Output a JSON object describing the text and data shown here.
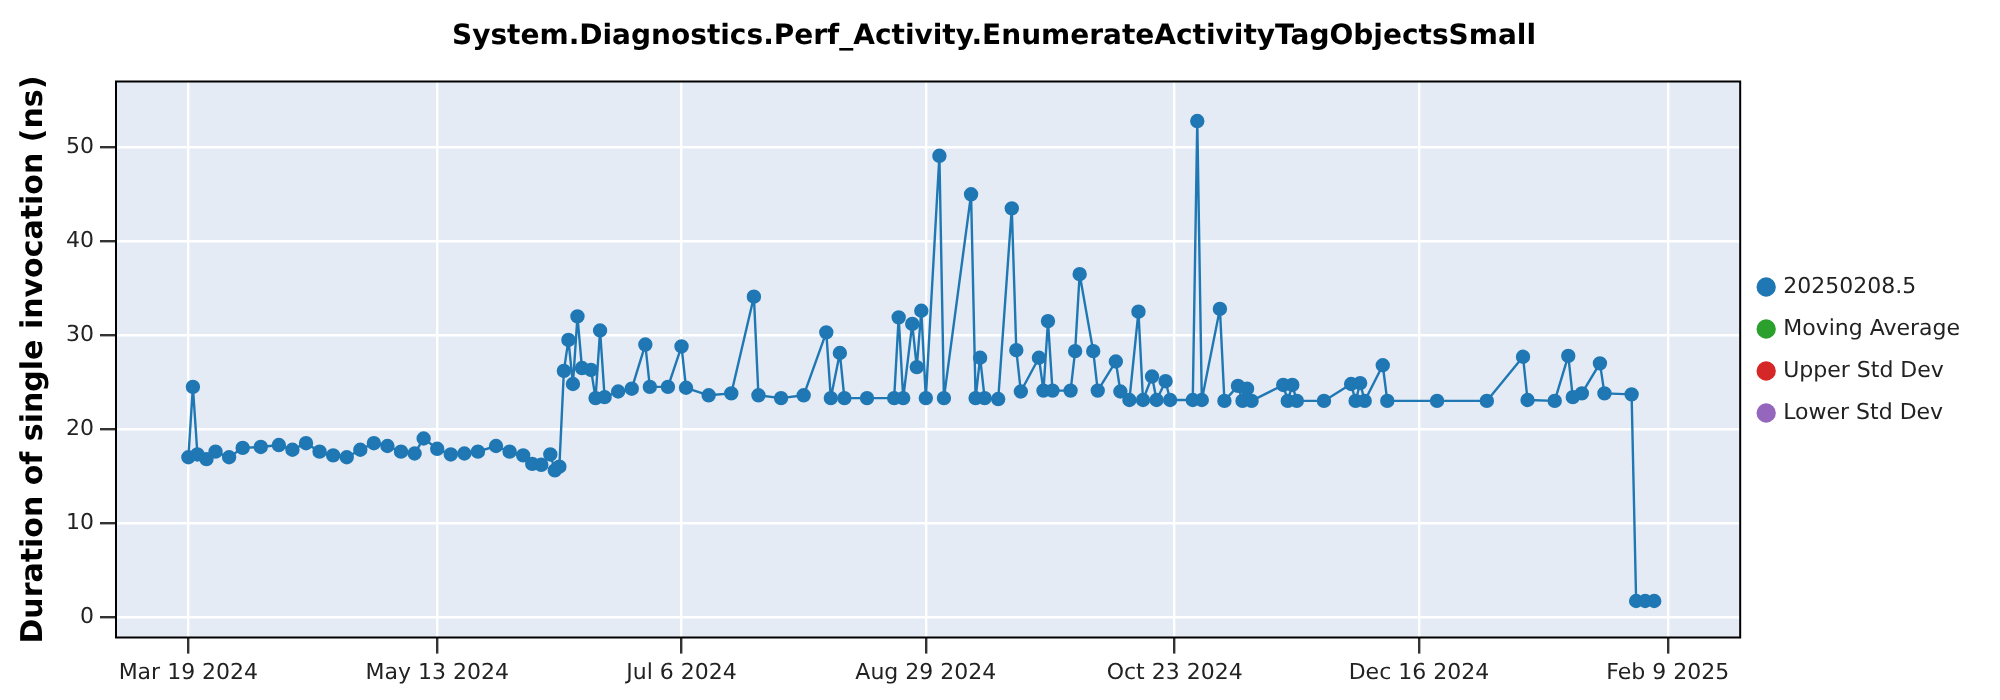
{
  "chart_data": {
    "type": "line",
    "title": "System.Diagnostics.Perf_Activity.EnumerateActivityTagObjectsSmall",
    "ylabel": "Duration of single invocation (ns)",
    "xlim": [
      "2024-03-03",
      "2025-02-25"
    ],
    "xticks": [
      {
        "value": "2024-03-19",
        "label": "Mar 19 2024"
      },
      {
        "value": "2024-05-13",
        "label": "May 13 2024"
      },
      {
        "value": "2024-07-06",
        "label": "Jul 6 2024"
      },
      {
        "value": "2024-08-29",
        "label": "Aug 29 2024"
      },
      {
        "value": "2024-10-23",
        "label": "Oct 23 2024"
      },
      {
        "value": "2024-12-16",
        "label": "Dec 16 2024"
      },
      {
        "value": "2025-02-09",
        "label": "Feb 9 2025"
      }
    ],
    "ylim": [
      -2.2,
      57
    ],
    "yticks": [
      0,
      10,
      20,
      30,
      40,
      50
    ],
    "grid": true,
    "legend": "right",
    "marker": "circle",
    "line_style": "solid",
    "series": [
      {
        "name": "20250208.5",
        "color": "#1f77b4",
        "x": [
          "2024-03-19",
          "2024-03-20",
          "2024-03-21",
          "2024-03-23",
          "2024-03-25",
          "2024-03-28",
          "2024-03-31",
          "2024-04-04",
          "2024-04-08",
          "2024-04-11",
          "2024-04-14",
          "2024-04-17",
          "2024-04-20",
          "2024-04-23",
          "2024-04-26",
          "2024-04-29",
          "2024-05-02",
          "2024-05-05",
          "2024-05-08",
          "2024-05-10",
          "2024-05-13",
          "2024-05-16",
          "2024-05-19",
          "2024-05-22",
          "2024-05-26",
          "2024-05-29",
          "2024-06-01",
          "2024-06-03",
          "2024-06-05",
          "2024-06-07",
          "2024-06-08",
          "2024-06-09",
          "2024-06-10",
          "2024-06-11",
          "2024-06-12",
          "2024-06-13",
          "2024-06-14",
          "2024-06-16",
          "2024-06-17",
          "2024-06-18",
          "2024-06-19",
          "2024-06-22",
          "2024-06-25",
          "2024-06-28",
          "2024-06-29",
          "2024-07-03",
          "2024-07-06",
          "2024-07-07",
          "2024-07-12",
          "2024-07-17",
          "2024-07-22",
          "2024-07-23",
          "2024-07-28",
          "2024-08-02",
          "2024-08-07",
          "2024-08-08",
          "2024-08-10",
          "2024-08-11",
          "2024-08-16",
          "2024-08-22",
          "2024-08-23",
          "2024-08-24",
          "2024-08-26",
          "2024-08-27",
          "2024-08-28",
          "2024-08-29",
          "2024-09-01",
          "2024-09-02",
          "2024-09-08",
          "2024-09-09",
          "2024-09-10",
          "2024-09-11",
          "2024-09-14",
          "2024-09-17",
          "2024-09-18",
          "2024-09-19",
          "2024-09-23",
          "2024-09-24",
          "2024-09-25",
          "2024-09-26",
          "2024-09-30",
          "2024-10-01",
          "2024-10-02",
          "2024-10-05",
          "2024-10-06",
          "2024-10-10",
          "2024-10-11",
          "2024-10-13",
          "2024-10-15",
          "2024-10-16",
          "2024-10-18",
          "2024-10-19",
          "2024-10-21",
          "2024-10-22",
          "2024-10-27",
          "2024-10-28",
          "2024-10-29",
          "2024-11-02",
          "2024-11-03",
          "2024-11-06",
          "2024-11-07",
          "2024-11-08",
          "2024-11-09",
          "2024-11-16",
          "2024-11-17",
          "2024-11-18",
          "2024-11-19",
          "2024-11-25",
          "2024-12-01",
          "2024-12-02",
          "2024-12-03",
          "2024-12-04",
          "2024-12-08",
          "2024-12-09",
          "2024-12-20",
          "2024-12-31",
          "2025-01-08",
          "2025-01-09",
          "2025-01-15",
          "2025-01-18",
          "2025-01-19",
          "2025-01-21",
          "2025-01-25",
          "2025-01-26",
          "2025-02-01",
          "2025-02-02",
          "2025-02-04",
          "2025-02-06"
        ],
        "values": [
          17.0,
          24.5,
          17.3,
          16.8,
          17.6,
          17.0,
          18.0,
          18.1,
          18.3,
          17.8,
          18.5,
          17.6,
          17.2,
          17.0,
          17.8,
          18.5,
          18.2,
          17.6,
          17.4,
          19.0,
          17.9,
          17.3,
          17.4,
          17.6,
          18.2,
          17.6,
          17.2,
          16.3,
          16.2,
          17.3,
          15.6,
          16.0,
          26.2,
          29.5,
          24.8,
          32.0,
          26.5,
          26.3,
          23.3,
          30.5,
          23.4,
          24.0,
          24.3,
          29.0,
          24.5,
          24.5,
          28.8,
          24.4,
          23.6,
          23.8,
          34.1,
          23.6,
          23.3,
          23.6,
          30.3,
          23.3,
          28.1,
          23.3,
          23.3,
          23.3,
          31.9,
          23.3,
          31.2,
          26.6,
          32.6,
          23.3,
          49.1,
          23.3,
          45.0,
          23.3,
          27.6,
          23.3,
          23.2,
          43.5,
          28.4,
          24.0,
          27.6,
          24.1,
          31.5,
          24.1,
          24.1,
          28.3,
          36.5,
          28.3,
          24.1,
          27.2,
          24.0,
          23.1,
          32.5,
          23.1,
          25.6,
          23.1,
          25.1,
          23.1,
          23.1,
          52.8,
          23.1,
          32.8,
          23.0,
          24.6,
          23.0,
          24.3,
          23.0,
          24.7,
          23.0,
          24.7,
          23.0,
          23.0,
          24.8,
          23.0,
          24.9,
          23.0,
          26.8,
          23.0,
          23.0,
          23.0,
          27.7,
          23.1,
          23.0,
          27.8,
          23.4,
          23.8,
          27.0,
          23.8,
          23.7,
          1.7,
          1.7,
          1.7
        ]
      },
      {
        "name": "Moving Average",
        "color": "#2ca02c"
      },
      {
        "name": "Upper Std Dev",
        "color": "#d62728"
      },
      {
        "name": "Lower Std Dev",
        "color": "#9467bd"
      }
    ]
  }
}
